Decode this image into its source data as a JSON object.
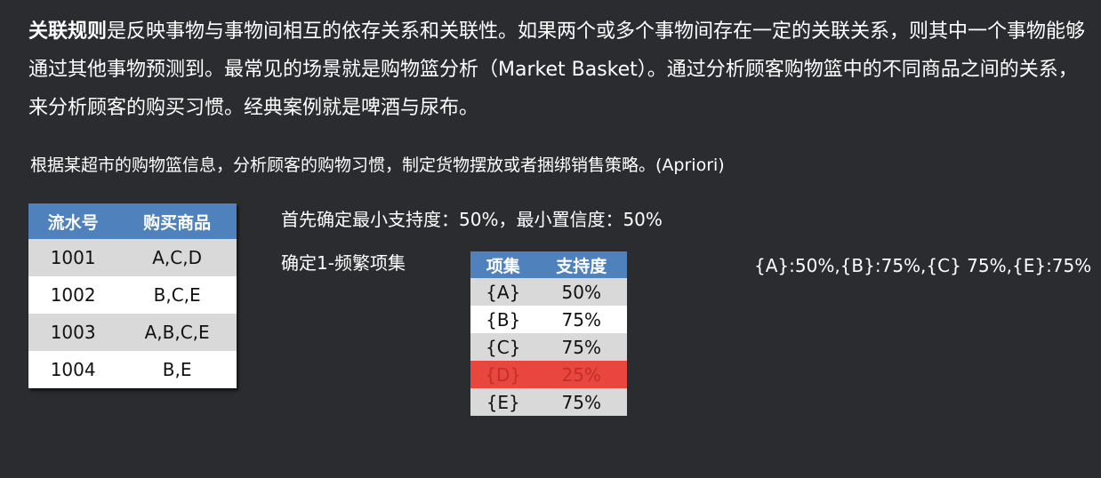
{
  "intro": {
    "keyword": "关联规则",
    "text": "是反映事物与事物间相互的依存关系和关联性。如果两个或多个事物间存在一定的关联关系，则其中一个事物能够通过其他事物预测到。最常见的场景就是购物篮分析（Market Basket）。通过分析顾客购物篮中的不同商品之间的关系，来分析顾客的购买习惯。经典案例就是啤酒与尿布。"
  },
  "task": "根据某超市的购物篮信息，分析顾客的购物习惯，制定货物摆放或者捆绑销售策略。(Apriori)",
  "transactions": {
    "headers": [
      "流水号",
      "购买商品"
    ],
    "rows": [
      [
        "1001",
        "A,C,D"
      ],
      [
        "1002",
        "B,C,E"
      ],
      [
        "1003",
        "A,B,C,E"
      ],
      [
        "1004",
        "B,E"
      ]
    ]
  },
  "thresholds": "首先确定最小支持度：50%，最小置信度：50%",
  "step1_label": "确定1-频繁项集",
  "itemsets": {
    "headers": [
      "项集",
      "支持度"
    ],
    "rows": [
      [
        "{A}",
        "50%"
      ],
      [
        "{B}",
        "75%"
      ],
      [
        "{C}",
        "75%"
      ],
      [
        "{D}",
        "25%"
      ],
      [
        "{E}",
        "75%"
      ]
    ],
    "pruned_row_color": "#e8463f"
  },
  "result": "{A}:50%,{B}:75%,{C} 75%,{E}:75%",
  "colors": {
    "background": "#2b2c2f",
    "header": "#4f81bd",
    "row_alt": "#d9d9d9",
    "row": "#ffffff",
    "pruned_text": "#c0302a"
  }
}
